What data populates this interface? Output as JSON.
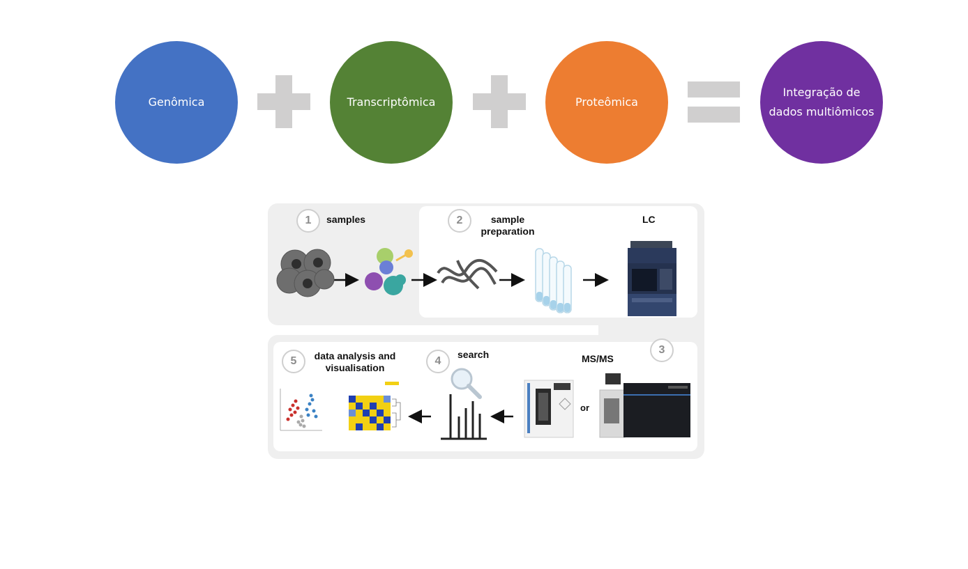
{
  "equation": {
    "genomics": {
      "label": "Genômica",
      "color": "#4472c4"
    },
    "transcriptomics": {
      "label": "Transcriptômica",
      "color": "#548235"
    },
    "proteomics": {
      "label": "Proteômica",
      "color": "#ed7d31"
    },
    "result": {
      "label": "Integração de dados multiômicos",
      "color": "#7030a0"
    },
    "operator_color": "#d0cfcf"
  },
  "workflow": {
    "steps": [
      {
        "number": "1",
        "label": "samples"
      },
      {
        "number": "2",
        "label": "sample preparation"
      },
      {
        "number": "3",
        "label": "MS/MS"
      },
      {
        "number": "4",
        "label": "search"
      },
      {
        "number": "5",
        "label": "data analysis and visualisation"
      }
    ],
    "lc_label": "LC",
    "or_label": "or"
  }
}
